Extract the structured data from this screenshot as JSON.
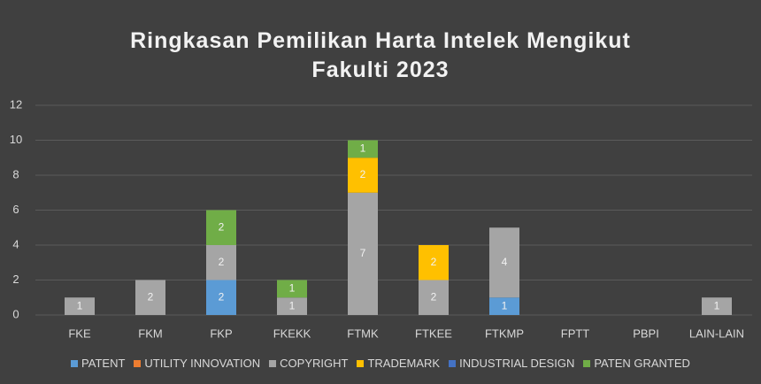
{
  "chart_data": {
    "type": "stacked_bar",
    "title": "Ringkasan Pemilikan Harta Intelek Mengikut Fakulti 2023",
    "categories": [
      "FKE",
      "FKM",
      "FKP",
      "FKEKK",
      "FTMK",
      "FTKEE",
      "FTKMP",
      "FPTT",
      "PBPI",
      "LAIN-LAIN"
    ],
    "series": [
      {
        "name": "PATENT",
        "color": "#5b9bd5",
        "values": [
          0,
          0,
          2,
          0,
          0,
          0,
          1,
          0,
          0,
          0
        ]
      },
      {
        "name": "UTILITY INNOVATION",
        "color": "#ed7d31",
        "values": [
          0,
          0,
          0,
          0,
          0,
          0,
          0,
          0,
          0,
          0
        ]
      },
      {
        "name": "COPYRIGHT",
        "color": "#a5a5a5",
        "values": [
          1,
          2,
          2,
          1,
          7,
          2,
          4,
          0,
          0,
          1
        ]
      },
      {
        "name": "TRADEMARK",
        "color": "#ffc000",
        "values": [
          0,
          0,
          0,
          0,
          2,
          2,
          0,
          0,
          0,
          0
        ]
      },
      {
        "name": "INDUSTRIAL DESIGN",
        "color": "#4472c4",
        "values": [
          0,
          0,
          0,
          0,
          0,
          0,
          0,
          0,
          0,
          0
        ]
      },
      {
        "name": "PATEN GRANTED",
        "color": "#70ad47",
        "values": [
          0,
          0,
          2,
          1,
          1,
          0,
          0,
          0,
          0,
          0
        ]
      }
    ],
    "ylim": [
      0,
      12
    ],
    "yticks": [
      0,
      2,
      4,
      6,
      8,
      10,
      12
    ],
    "grid": true,
    "legend": "bottom"
  }
}
